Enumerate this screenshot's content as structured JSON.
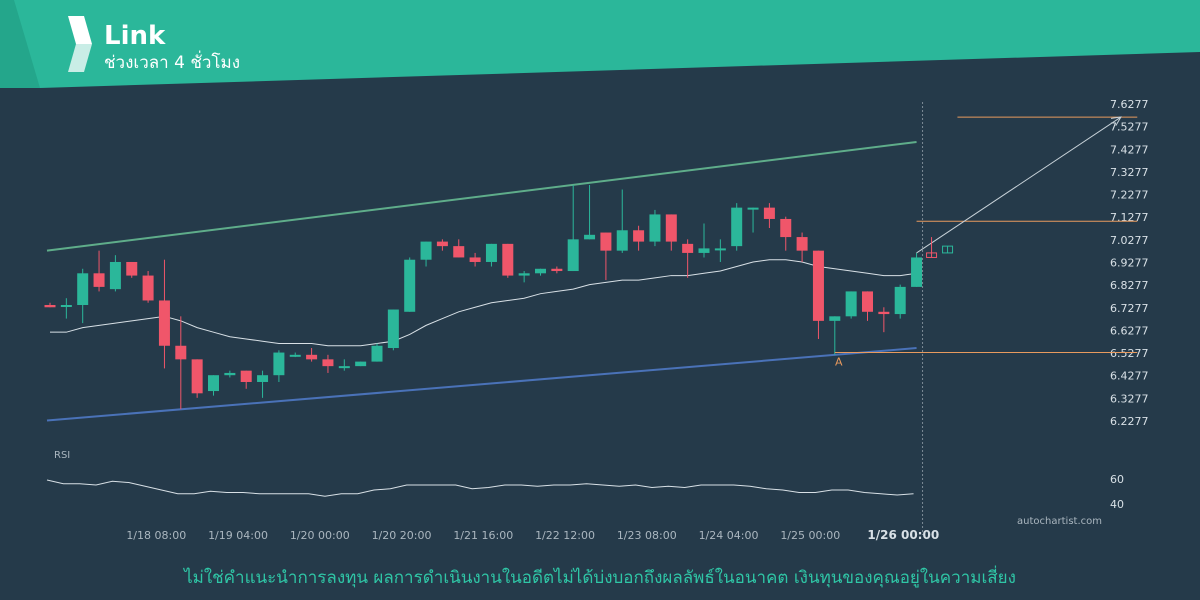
{
  "header": {
    "title": "Link",
    "subtitle": "ช่วงเวลา 4 ชั่วโมง",
    "brand_color": "#2bb79a",
    "logo_icon": "autochartist-logo-icon"
  },
  "footer": {
    "disclaimer": "ไม่ใช่คำแนะนำการลงทุน ผลการดำเนินงานในอดีตไม่ได้บ่งบอกถึงผลลัพธ์ในอนาคต เงินทุนของคุณอยู่ในความเสี่ยง",
    "watermark": "autochartist.com"
  },
  "chart_data": {
    "type": "candlestick",
    "colors": {
      "up": "#2bb79a",
      "down": "#f0566a",
      "support": "#4a72b8",
      "resistance": "#5fad8a",
      "target": "#e89a5e",
      "ma": "#d8e0e6"
    },
    "y_ticks": [
      "7.6277",
      "7.5277",
      "7.4277",
      "7.3277",
      "7.2277",
      "7.1277",
      "7.0277",
      "6.9277",
      "6.8277",
      "6.7277",
      "6.6277",
      "6.5277",
      "6.4277",
      "6.3277",
      "6.2277"
    ],
    "ylim": [
      6.2277,
      7.6277
    ],
    "x_ticks": [
      "1/18 08:00",
      "1/19 04:00",
      "1/20 00:00",
      "1/20 20:00",
      "1/21 16:00",
      "1/22 12:00",
      "1/23 08:00",
      "1/24 04:00",
      "1/25 00:00",
      "1/26 00:00"
    ],
    "x_tick_index": [
      6.5,
      11.5,
      16.5,
      21.5,
      26.5,
      31.5,
      36.5,
      41.5,
      46.5,
      51.7
    ],
    "highlight_tick": "1/26 00:00",
    "candles": [
      {
        "o": 6.74,
        "h": 6.75,
        "l": 6.73,
        "c": 6.73
      },
      {
        "o": 6.74,
        "h": 6.77,
        "l": 6.68,
        "c": 6.74
      },
      {
        "o": 6.74,
        "h": 6.9,
        "l": 6.66,
        "c": 6.88
      },
      {
        "o": 6.88,
        "h": 6.98,
        "l": 6.8,
        "c": 6.82
      },
      {
        "o": 6.81,
        "h": 6.96,
        "l": 6.8,
        "c": 6.93
      },
      {
        "o": 6.93,
        "h": 6.93,
        "l": 6.86,
        "c": 6.87
      },
      {
        "o": 6.87,
        "h": 6.89,
        "l": 6.75,
        "c": 6.76
      },
      {
        "o": 6.76,
        "h": 6.94,
        "l": 6.46,
        "c": 6.56
      },
      {
        "o": 6.56,
        "h": 6.69,
        "l": 6.28,
        "c": 6.5
      },
      {
        "o": 6.5,
        "h": 6.5,
        "l": 6.33,
        "c": 6.35
      },
      {
        "o": 6.36,
        "h": 6.43,
        "l": 6.34,
        "c": 6.43
      },
      {
        "o": 6.43,
        "h": 6.45,
        "l": 6.42,
        "c": 6.44
      },
      {
        "o": 6.45,
        "h": 6.45,
        "l": 6.37,
        "c": 6.4
      },
      {
        "o": 6.4,
        "h": 6.45,
        "l": 6.33,
        "c": 6.43
      },
      {
        "o": 6.43,
        "h": 6.54,
        "l": 6.4,
        "c": 6.53
      },
      {
        "o": 6.52,
        "h": 6.53,
        "l": 6.51,
        "c": 6.52
      },
      {
        "o": 6.52,
        "h": 6.55,
        "l": 6.49,
        "c": 6.5
      },
      {
        "o": 6.5,
        "h": 6.52,
        "l": 6.44,
        "c": 6.47
      },
      {
        "o": 6.47,
        "h": 6.5,
        "l": 6.45,
        "c": 6.47
      },
      {
        "o": 6.47,
        "h": 6.49,
        "l": 6.47,
        "c": 6.49
      },
      {
        "o": 6.49,
        "h": 6.57,
        "l": 6.49,
        "c": 6.56
      },
      {
        "o": 6.55,
        "h": 6.72,
        "l": 6.54,
        "c": 6.72
      },
      {
        "o": 6.71,
        "h": 6.95,
        "l": 6.71,
        "c": 6.94
      },
      {
        "o": 6.94,
        "h": 7.02,
        "l": 6.91,
        "c": 7.02
      },
      {
        "o": 7.02,
        "h": 7.03,
        "l": 6.98,
        "c": 7.0
      },
      {
        "o": 7.0,
        "h": 7.03,
        "l": 6.95,
        "c": 6.95
      },
      {
        "o": 6.95,
        "h": 6.97,
        "l": 6.91,
        "c": 6.93
      },
      {
        "o": 6.93,
        "h": 7.01,
        "l": 6.91,
        "c": 7.01
      },
      {
        "o": 7.01,
        "h": 7.01,
        "l": 6.86,
        "c": 6.87
      },
      {
        "o": 6.87,
        "h": 6.89,
        "l": 6.84,
        "c": 6.88
      },
      {
        "o": 6.88,
        "h": 6.9,
        "l": 6.87,
        "c": 6.9
      },
      {
        "o": 6.9,
        "h": 6.91,
        "l": 6.88,
        "c": 6.89
      },
      {
        "o": 6.89,
        "h": 7.27,
        "l": 6.89,
        "c": 7.03
      },
      {
        "o": 7.03,
        "h": 7.27,
        "l": 7.03,
        "c": 7.05
      },
      {
        "o": 7.06,
        "h": 7.06,
        "l": 6.85,
        "c": 6.98
      },
      {
        "o": 6.98,
        "h": 7.25,
        "l": 6.97,
        "c": 7.07
      },
      {
        "o": 7.07,
        "h": 7.09,
        "l": 6.98,
        "c": 7.02
      },
      {
        "o": 7.02,
        "h": 7.16,
        "l": 7.0,
        "c": 7.14
      },
      {
        "o": 7.14,
        "h": 7.14,
        "l": 6.98,
        "c": 7.02
      },
      {
        "o": 7.01,
        "h": 7.03,
        "l": 6.86,
        "c": 6.97
      },
      {
        "o": 6.97,
        "h": 7.1,
        "l": 6.95,
        "c": 6.99
      },
      {
        "o": 6.99,
        "h": 7.03,
        "l": 6.93,
        "c": 6.99
      },
      {
        "o": 7.0,
        "h": 7.19,
        "l": 6.98,
        "c": 7.17
      },
      {
        "o": 7.17,
        "h": 7.17,
        "l": 7.06,
        "c": 7.17
      },
      {
        "o": 7.17,
        "h": 7.19,
        "l": 7.08,
        "c": 7.12
      },
      {
        "o": 7.12,
        "h": 7.13,
        "l": 6.98,
        "c": 7.04
      },
      {
        "o": 7.04,
        "h": 7.06,
        "l": 6.93,
        "c": 6.98
      },
      {
        "o": 6.98,
        "h": 6.98,
        "l": 6.59,
        "c": 6.67
      },
      {
        "o": 6.67,
        "h": 6.69,
        "l": 6.52,
        "c": 6.69
      },
      {
        "o": 6.69,
        "h": 6.8,
        "l": 6.68,
        "c": 6.8
      },
      {
        "o": 6.8,
        "h": 6.8,
        "l": 6.67,
        "c": 6.71
      },
      {
        "o": 6.71,
        "h": 6.73,
        "l": 6.62,
        "c": 6.7
      },
      {
        "o": 6.7,
        "h": 6.83,
        "l": 6.68,
        "c": 6.82
      },
      {
        "o": 6.82,
        "h": 6.97,
        "l": 6.82,
        "c": 6.95
      }
    ],
    "ma": [
      6.62,
      6.62,
      6.64,
      6.65,
      6.66,
      6.67,
      6.68,
      6.69,
      6.67,
      6.64,
      6.62,
      6.6,
      6.59,
      6.58,
      6.57,
      6.57,
      6.57,
      6.56,
      6.56,
      6.56,
      6.57,
      6.58,
      6.61,
      6.65,
      6.68,
      6.71,
      6.73,
      6.75,
      6.76,
      6.77,
      6.79,
      6.8,
      6.81,
      6.83,
      6.84,
      6.85,
      6.85,
      6.86,
      6.87,
      6.87,
      6.88,
      6.89,
      6.91,
      6.93,
      6.94,
      6.94,
      6.93,
      6.91,
      6.9,
      6.89,
      6.88,
      6.87,
      6.87,
      6.88
    ],
    "resistance_line": {
      "x": [
        0,
        53
      ],
      "y": [
        6.98,
        7.46
      ]
    },
    "support_line": {
      "x": [
        0,
        53
      ],
      "y": [
        6.23,
        6.55
      ]
    },
    "target_levels": [
      {
        "y": 7.57,
        "x_from": 55.5,
        "x_to": 66.5
      },
      {
        "y": 7.11,
        "x_from": 53,
        "x_to": 66.5
      },
      {
        "y": 6.53,
        "x_from": 48,
        "x_to": 66.5
      }
    ],
    "forecast_arrow": {
      "x": [
        53,
        65.5
      ],
      "y": [
        6.97,
        7.57
      ]
    },
    "projection_candles": [
      {
        "o": 6.97,
        "c": 6.95,
        "h": 7.04,
        "l": 6.95,
        "dir": "down"
      },
      {
        "o": 6.97,
        "c": 7.0,
        "h": 7.0,
        "l": 6.97,
        "dir": "up"
      }
    ],
    "annotation": {
      "label": "A",
      "x": 48,
      "y": 6.49
    },
    "rsi": {
      "label": "RSI",
      "ticks": [
        "60",
        "40"
      ],
      "ylim": [
        35,
        75
      ],
      "values": [
        59,
        56,
        56,
        55,
        58,
        57,
        54,
        51,
        48,
        48,
        50,
        49,
        49,
        48,
        48,
        48,
        48,
        46,
        48,
        48,
        51,
        52,
        55,
        55,
        55,
        55,
        52,
        53,
        55,
        55,
        54,
        55,
        55,
        56,
        55,
        54,
        55,
        53,
        54,
        53,
        55,
        55,
        55,
        54,
        52,
        51,
        49,
        49,
        51,
        51,
        49,
        48,
        47,
        48
      ]
    }
  }
}
